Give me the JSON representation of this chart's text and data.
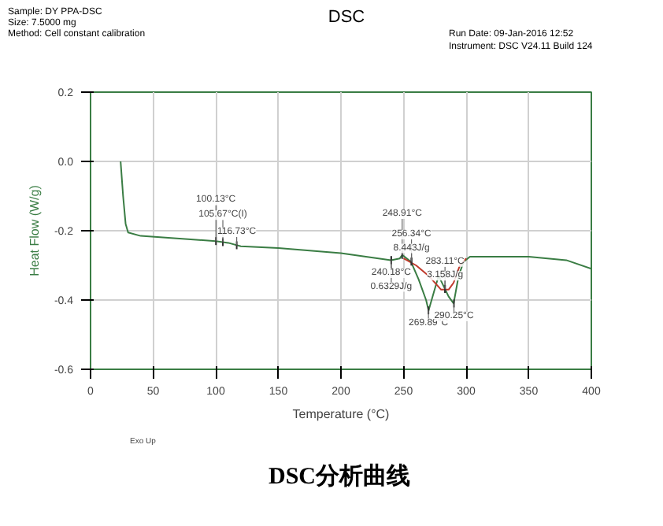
{
  "chart_data": {
    "type": "line",
    "title": "DSC",
    "xlabel": "Temperature (°C)",
    "ylabel": "Heat Flow (W/g)",
    "xlim": [
      0,
      400
    ],
    "xticks": [
      0,
      50,
      100,
      150,
      200,
      250,
      300,
      350,
      400
    ],
    "ylim": [
      -0.6,
      0.2
    ],
    "yticks": [
      {
        "value": -0.6,
        "label": "-0.6"
      },
      {
        "value": -0.4,
        "label": "-0.4"
      },
      {
        "value": -0.2,
        "label": "-0.2"
      },
      {
        "value": 0.0,
        "label": "0.0"
      },
      {
        "value": 0.2,
        "label": "0.2"
      }
    ],
    "grid": true,
    "series": [
      {
        "color": "#3a7d44",
        "x": [
          24,
          26,
          28,
          30,
          40,
          60,
          80,
          100,
          110,
          120,
          150,
          200,
          230,
          240,
          247,
          249,
          256,
          262,
          268,
          270,
          274,
          278,
          282,
          286,
          290,
          294,
          298,
          303,
          320,
          350,
          380,
          400
        ],
        "values": [
          0.0,
          -0.1,
          -0.18,
          -0.205,
          -0.215,
          -0.22,
          -0.225,
          -0.23,
          -0.235,
          -0.245,
          -0.25,
          -0.265,
          -0.28,
          -0.285,
          -0.28,
          -0.27,
          -0.29,
          -0.34,
          -0.4,
          -0.43,
          -0.38,
          -0.33,
          -0.36,
          -0.39,
          -0.41,
          -0.33,
          -0.29,
          -0.275,
          -0.275,
          -0.275,
          -0.285,
          -0.31
        ]
      },
      {
        "color": "#c0392b",
        "x": [
          250,
          260,
          270,
          280,
          286,
          290,
          295,
          300
        ],
        "values": [
          -0.28,
          -0.3,
          -0.33,
          -0.37,
          -0.37,
          -0.35,
          -0.3,
          -0.28
        ]
      }
    ],
    "annotations": [
      "Sample: DY PPA-DSC",
      "Size:  7.5000 mg",
      "Method: Cell constant calibration",
      "Run Date: 09-Jan-2016 12:52",
      "Instrument: DSC V24.11 Build 124",
      "Exo Up",
      "DSC分析曲线",
      {
        "text": "100.13°C",
        "x": 100.13,
        "y": -0.23
      },
      {
        "text": "105.67°C(I)",
        "x": 105.67,
        "y": -0.233
      },
      {
        "text": "116.73°C",
        "x": 116.73,
        "y": -0.242
      },
      {
        "text": "248.91°C",
        "x": 248.91,
        "y": -0.27
      },
      {
        "text": "240.18°C",
        "x": 240.18,
        "y": -0.285
      },
      {
        "text": "0.6329J/g",
        "x": 240.18,
        "y": -0.285
      },
      {
        "text": "256.34°C",
        "x": 256.34,
        "y": -0.289
      },
      {
        "text": "8.443J/g",
        "x": 256.34,
        "y": -0.289
      },
      {
        "text": "283.11°C",
        "x": 283.11,
        "y": -0.368
      },
      {
        "text": "3.158J/g",
        "x": 283.11,
        "y": -0.368
      },
      {
        "text": "269.89°C",
        "x": 269.89,
        "y": -0.43
      },
      {
        "text": "290.25°C",
        "x": 290.25,
        "y": -0.41
      }
    ]
  }
}
